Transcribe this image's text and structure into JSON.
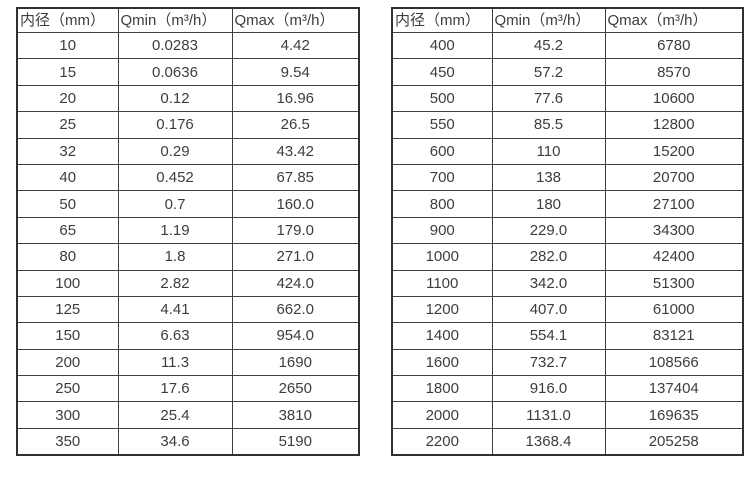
{
  "headers": [
    "内径（mm）",
    "Qmin（m³/h）",
    "Qmax（m³/h）"
  ],
  "left_table": {
    "rows": [
      [
        "10",
        "0.0283",
        "4.42"
      ],
      [
        "15",
        "0.0636",
        "9.54"
      ],
      [
        "20",
        "0.12",
        "16.96"
      ],
      [
        "25",
        "0.176",
        "26.5"
      ],
      [
        "32",
        "0.29",
        "43.42"
      ],
      [
        "40",
        "0.452",
        "67.85"
      ],
      [
        "50",
        "0.7",
        "160.0"
      ],
      [
        "65",
        "1.19",
        "179.0"
      ],
      [
        "80",
        "1.8",
        "271.0"
      ],
      [
        "100",
        "2.82",
        "424.0"
      ],
      [
        "125",
        "4.41",
        "662.0"
      ],
      [
        "150",
        "6.63",
        "954.0"
      ],
      [
        "200",
        "11.3",
        "1690"
      ],
      [
        "250",
        "17.6",
        "2650"
      ],
      [
        "300",
        "25.4",
        "3810"
      ],
      [
        "350",
        "34.6",
        "5190"
      ]
    ]
  },
  "right_table": {
    "rows": [
      [
        "400",
        "45.2",
        "6780"
      ],
      [
        "450",
        "57.2",
        "8570"
      ],
      [
        "500",
        "77.6",
        "10600"
      ],
      [
        "550",
        "85.5",
        "12800"
      ],
      [
        "600",
        "110",
        "15200"
      ],
      [
        "700",
        "138",
        "20700"
      ],
      [
        "800",
        "180",
        "27100"
      ],
      [
        "900",
        "229.0",
        "34300"
      ],
      [
        "1000",
        "282.0",
        "42400"
      ],
      [
        "1100",
        "342.0",
        "51300"
      ],
      [
        "1200",
        "407.0",
        "61000"
      ],
      [
        "1400",
        "554.1",
        "83121"
      ],
      [
        "1600",
        "732.7",
        "108566"
      ],
      [
        "1800",
        "916.0",
        "137404"
      ],
      [
        "2000",
        "1131.0",
        "169635"
      ],
      [
        "2200",
        "1368.4",
        "205258"
      ]
    ]
  },
  "colors": {
    "text": "#3d3d3d",
    "border_inner": "#414141",
    "border_outer": "#2f2f2f",
    "background": "#ffffff"
  },
  "chart_data": {
    "type": "table",
    "title": "",
    "columns": [
      "内径（mm）",
      "Qmin（m³/h）",
      "Qmax（m³/h）"
    ],
    "tables": [
      {
        "rows": [
          [
            10,
            0.0283,
            4.42
          ],
          [
            15,
            0.0636,
            9.54
          ],
          [
            20,
            0.12,
            16.96
          ],
          [
            25,
            0.176,
            26.5
          ],
          [
            32,
            0.29,
            43.42
          ],
          [
            40,
            0.452,
            67.85
          ],
          [
            50,
            0.7,
            160.0
          ],
          [
            65,
            1.19,
            179.0
          ],
          [
            80,
            1.8,
            271.0
          ],
          [
            100,
            2.82,
            424.0
          ],
          [
            125,
            4.41,
            662.0
          ],
          [
            150,
            6.63,
            954.0
          ],
          [
            200,
            11.3,
            1690
          ],
          [
            250,
            17.6,
            2650
          ],
          [
            300,
            25.4,
            3810
          ],
          [
            350,
            34.6,
            5190
          ]
        ]
      },
      {
        "rows": [
          [
            400,
            45.2,
            6780
          ],
          [
            450,
            57.2,
            8570
          ],
          [
            500,
            77.6,
            10600
          ],
          [
            550,
            85.5,
            12800
          ],
          [
            600,
            110,
            15200
          ],
          [
            700,
            138,
            20700
          ],
          [
            800,
            180,
            27100
          ],
          [
            900,
            229.0,
            34300
          ],
          [
            1000,
            282.0,
            42400
          ],
          [
            1100,
            342.0,
            51300
          ],
          [
            1200,
            407.0,
            61000
          ],
          [
            1400,
            554.1,
            83121
          ],
          [
            1600,
            732.7,
            108566
          ],
          [
            1800,
            916.0,
            137404
          ],
          [
            2000,
            1131.0,
            169635
          ],
          [
            2200,
            1368.4,
            205258
          ]
        ]
      }
    ]
  }
}
